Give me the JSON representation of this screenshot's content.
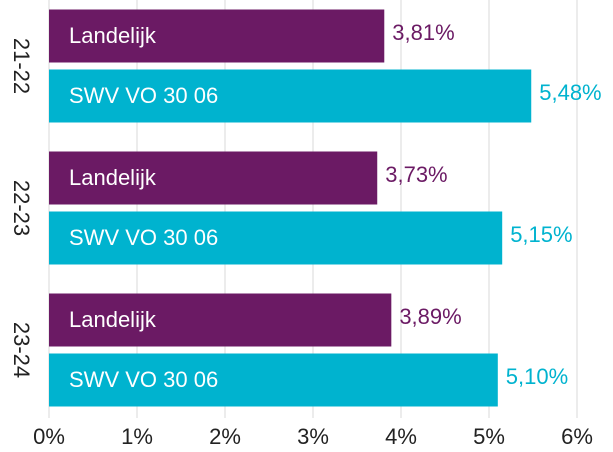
{
  "chart_data": {
    "type": "hbar",
    "categories": [
      "21-22",
      "22-23",
      "23-24"
    ],
    "series": [
      {
        "name": "Landelijk",
        "color": "#6b1a64",
        "values": [
          3.81,
          3.73,
          3.89
        ],
        "value_labels": [
          "3,81%",
          "3,73%",
          "3,89%"
        ]
      },
      {
        "name": "SWV VO 30 06",
        "color": "#00b3cf",
        "values": [
          5.48,
          5.15,
          5.1
        ],
        "value_labels": [
          "5,48%",
          "5,15%",
          "5,10%"
        ]
      }
    ],
    "xlim": [
      0,
      6
    ],
    "xticks": [
      {
        "value": 0,
        "label": "0%"
      },
      {
        "value": 1,
        "label": "1%"
      },
      {
        "value": 2,
        "label": "2%"
      },
      {
        "value": 3,
        "label": "3%"
      },
      {
        "value": 4,
        "label": "4%"
      },
      {
        "value": 5,
        "label": "5%"
      },
      {
        "value": 6,
        "label": "6%"
      }
    ],
    "grid": true
  }
}
